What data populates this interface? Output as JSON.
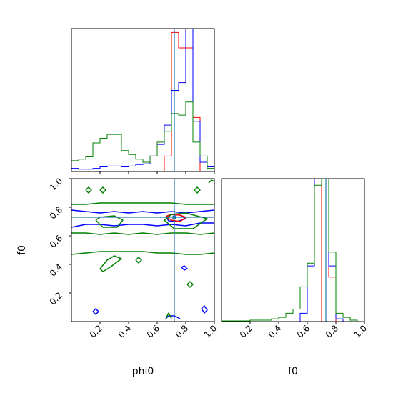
{
  "chart_data": [
    {
      "type": "histogram",
      "panel": "phi0-marginal",
      "xlim": [
        0,
        1
      ],
      "truth": 0.72,
      "bin_edges": [
        0.0,
        0.05,
        0.1,
        0.15,
        0.2,
        0.25,
        0.3,
        0.35,
        0.4,
        0.45,
        0.5,
        0.55,
        0.6,
        0.65,
        0.7,
        0.75,
        0.8,
        0.85,
        0.9,
        0.95,
        1.0
      ],
      "series": [
        {
          "color": "#ff0000",
          "counts": [
            0,
            0,
            0,
            0,
            0,
            0,
            0,
            0,
            0,
            0,
            0,
            0,
            0,
            0.2,
            1.8,
            1.6,
            1.6,
            0.7,
            0,
            0
          ]
        },
        {
          "color": "#0000ff",
          "counts": [
            0.04,
            0.03,
            0.03,
            0.04,
            0.06,
            0.07,
            0.07,
            0.06,
            0.07,
            0.09,
            0.1,
            0.2,
            0.35,
            0.6,
            1.05,
            1.15,
            1.85,
            0.65,
            0.12,
            0.06
          ]
        },
        {
          "color": "#008000",
          "counts": [
            0.14,
            0.16,
            0.19,
            0.37,
            0.43,
            0.48,
            0.48,
            0.27,
            0.22,
            0.16,
            0.12,
            0.2,
            0.38,
            0.52,
            0.75,
            0.73,
            0.9,
            0.38,
            0.2,
            0.04
          ]
        }
      ]
    },
    {
      "type": "contour",
      "panel": "phi0-f0-joint",
      "xlabel": "phi0",
      "ylabel": "f0",
      "xlim": [
        0,
        1
      ],
      "ylim": [
        0,
        1
      ],
      "xticks": [
        "0.2",
        "0.4",
        "0.6",
        "0.8",
        "1.0"
      ],
      "yticks": [
        "0.2",
        "0.4",
        "0.6",
        "0.8",
        "1.0"
      ],
      "truth": {
        "x": 0.72,
        "y": 0.73
      },
      "series": [
        {
          "color": "#0000ff",
          "paths": [
            [
              [
                0.0,
                0.78
              ],
              [
                0.1,
                0.77
              ],
              [
                0.2,
                0.76
              ],
              [
                0.3,
                0.77
              ],
              [
                0.4,
                0.76
              ],
              [
                0.5,
                0.77
              ],
              [
                0.6,
                0.76
              ],
              [
                0.7,
                0.77
              ],
              [
                0.8,
                0.76
              ],
              [
                0.9,
                0.77
              ],
              [
                1.0,
                0.78
              ]
            ],
            [
              [
                0.0,
                0.66
              ],
              [
                0.1,
                0.68
              ],
              [
                0.2,
                0.68
              ],
              [
                0.3,
                0.67
              ],
              [
                0.4,
                0.68
              ],
              [
                0.5,
                0.68
              ],
              [
                0.6,
                0.67
              ],
              [
                0.7,
                0.68
              ],
              [
                0.8,
                0.67
              ],
              [
                0.9,
                0.69
              ],
              [
                1.0,
                0.69
              ]
            ],
            [
              [
                0.66,
                0.735
              ],
              [
                0.7,
                0.75
              ],
              [
                0.76,
                0.745
              ],
              [
                0.8,
                0.72
              ],
              [
                0.74,
                0.7
              ],
              [
                0.68,
                0.705
              ],
              [
                0.66,
                0.735
              ]
            ],
            [
              [
                0.66,
                0.02
              ],
              [
                0.68,
                0.04
              ],
              [
                0.72,
                0.04
              ],
              [
                0.76,
                0.02
              ]
            ],
            [
              [
                0.15,
                0.07
              ],
              [
                0.17,
                0.09
              ],
              [
                0.19,
                0.07
              ],
              [
                0.17,
                0.05
              ],
              [
                0.15,
                0.07
              ]
            ],
            [
              [
                0.77,
                0.38
              ],
              [
                0.79,
                0.39
              ],
              [
                0.81,
                0.37
              ],
              [
                0.79,
                0.36
              ],
              [
                0.77,
                0.38
              ]
            ],
            [
              [
                0.91,
                0.09
              ],
              [
                0.93,
                0.11
              ],
              [
                0.95,
                0.08
              ],
              [
                0.93,
                0.06
              ],
              [
                0.91,
                0.09
              ]
            ]
          ]
        },
        {
          "color": "#ff0000",
          "paths": [
            [
              [
                0.66,
                0.735
              ],
              [
                0.7,
                0.75
              ],
              [
                0.76,
                0.745
              ],
              [
                0.8,
                0.73
              ],
              [
                0.76,
                0.7
              ],
              [
                0.7,
                0.71
              ],
              [
                0.66,
                0.735
              ]
            ]
          ]
        },
        {
          "color": "#008000",
          "paths": [
            [
              [
                0.0,
                0.82
              ],
              [
                0.1,
                0.82
              ],
              [
                0.2,
                0.83
              ],
              [
                0.3,
                0.83
              ],
              [
                0.4,
                0.83
              ],
              [
                0.5,
                0.83
              ],
              [
                0.6,
                0.83
              ],
              [
                0.7,
                0.83
              ],
              [
                0.8,
                0.82
              ],
              [
                0.9,
                0.82
              ],
              [
                1.0,
                0.82
              ]
            ],
            [
              [
                0.0,
                0.47
              ],
              [
                0.1,
                0.48
              ],
              [
                0.2,
                0.49
              ],
              [
                0.3,
                0.49
              ],
              [
                0.4,
                0.49
              ],
              [
                0.5,
                0.49
              ],
              [
                0.6,
                0.48
              ],
              [
                0.7,
                0.48
              ],
              [
                0.8,
                0.47
              ],
              [
                0.9,
                0.47
              ],
              [
                1.0,
                0.48
              ]
            ],
            [
              [
                0.0,
                0.62
              ],
              [
                0.1,
                0.62
              ],
              [
                0.2,
                0.61
              ],
              [
                0.3,
                0.62
              ],
              [
                0.4,
                0.61
              ],
              [
                0.5,
                0.62
              ],
              [
                0.6,
                0.61
              ],
              [
                0.7,
                0.62
              ],
              [
                0.8,
                0.62
              ],
              [
                0.9,
                0.61
              ],
              [
                1.0,
                0.62
              ]
            ],
            [
              [
                0.17,
                0.71
              ],
              [
                0.2,
                0.73
              ],
              [
                0.3,
                0.74
              ],
              [
                0.36,
                0.71
              ],
              [
                0.32,
                0.66
              ],
              [
                0.22,
                0.66
              ],
              [
                0.17,
                0.71
              ]
            ],
            [
              [
                0.65,
                0.71
              ],
              [
                0.7,
                0.75
              ],
              [
                0.8,
                0.76
              ],
              [
                0.95,
                0.72
              ],
              [
                0.85,
                0.65
              ],
              [
                0.72,
                0.65
              ],
              [
                0.65,
                0.71
              ]
            ],
            [
              [
                0.2,
                0.37
              ],
              [
                0.25,
                0.43
              ],
              [
                0.3,
                0.46
              ],
              [
                0.35,
                0.44
              ],
              [
                0.27,
                0.38
              ],
              [
                0.22,
                0.35
              ],
              [
                0.2,
                0.37
              ]
            ],
            [
              [
                0.1,
                0.92
              ],
              [
                0.12,
                0.94
              ],
              [
                0.14,
                0.92
              ],
              [
                0.12,
                0.9
              ],
              [
                0.1,
                0.92
              ]
            ],
            [
              [
                0.2,
                0.92
              ],
              [
                0.22,
                0.94
              ],
              [
                0.24,
                0.92
              ],
              [
                0.22,
                0.9
              ],
              [
                0.2,
                0.92
              ]
            ],
            [
              [
                0.86,
                0.92
              ],
              [
                0.88,
                0.94
              ],
              [
                0.9,
                0.92
              ],
              [
                0.88,
                0.9
              ],
              [
                0.86,
                0.92
              ]
            ],
            [
              [
                0.45,
                0.43
              ],
              [
                0.47,
                0.45
              ],
              [
                0.49,
                0.43
              ],
              [
                0.47,
                0.41
              ],
              [
                0.45,
                0.43
              ]
            ],
            [
              [
                0.81,
                0.26
              ],
              [
                0.83,
                0.28
              ],
              [
                0.85,
                0.26
              ],
              [
                0.83,
                0.24
              ],
              [
                0.81,
                0.26
              ]
            ],
            [
              [
                0.66,
                0.02
              ],
              [
                0.68,
                0.06
              ],
              [
                0.7,
                0.02
              ]
            ],
            [
              [
                0.96,
                0.97
              ],
              [
                0.98,
                0.99
              ],
              [
                1.0,
                0.98
              ]
            ]
          ]
        }
      ]
    },
    {
      "type": "histogram",
      "panel": "f0-marginal",
      "xlabel": "f0",
      "xlim": [
        0,
        1
      ],
      "xticks": [
        "0.2",
        "0.4",
        "0.6",
        "0.8",
        "1.0"
      ],
      "truth": 0.73,
      "bin_edges": [
        0.0,
        0.05,
        0.1,
        0.15,
        0.2,
        0.25,
        0.3,
        0.35,
        0.4,
        0.45,
        0.5,
        0.55,
        0.6,
        0.65,
        0.7,
        0.75,
        0.8,
        0.85,
        0.9,
        0.95,
        1.0
      ],
      "series": [
        {
          "color": "#ff0000",
          "counts": [
            0,
            0,
            0,
            0,
            0,
            0,
            0,
            0,
            0,
            0,
            0,
            0,
            0,
            0,
            1.05,
            0.32,
            0,
            0,
            0,
            0
          ]
        },
        {
          "color": "#0000ff",
          "counts": [
            0,
            0,
            0,
            0,
            0,
            0,
            0,
            0,
            0,
            0,
            0,
            0.06,
            0.4,
            1.05,
            1.15,
            0.4,
            0.02,
            0,
            0,
            0
          ]
        },
        {
          "color": "#008000",
          "counts": [
            0.005,
            0.005,
            0.005,
            0.005,
            0.01,
            0.01,
            0.01,
            0.02,
            0.03,
            0.06,
            0.09,
            0.25,
            0.42,
            0.98,
            1.05,
            0.5,
            0.06,
            0.03,
            0.01,
            0
          ]
        }
      ]
    }
  ]
}
